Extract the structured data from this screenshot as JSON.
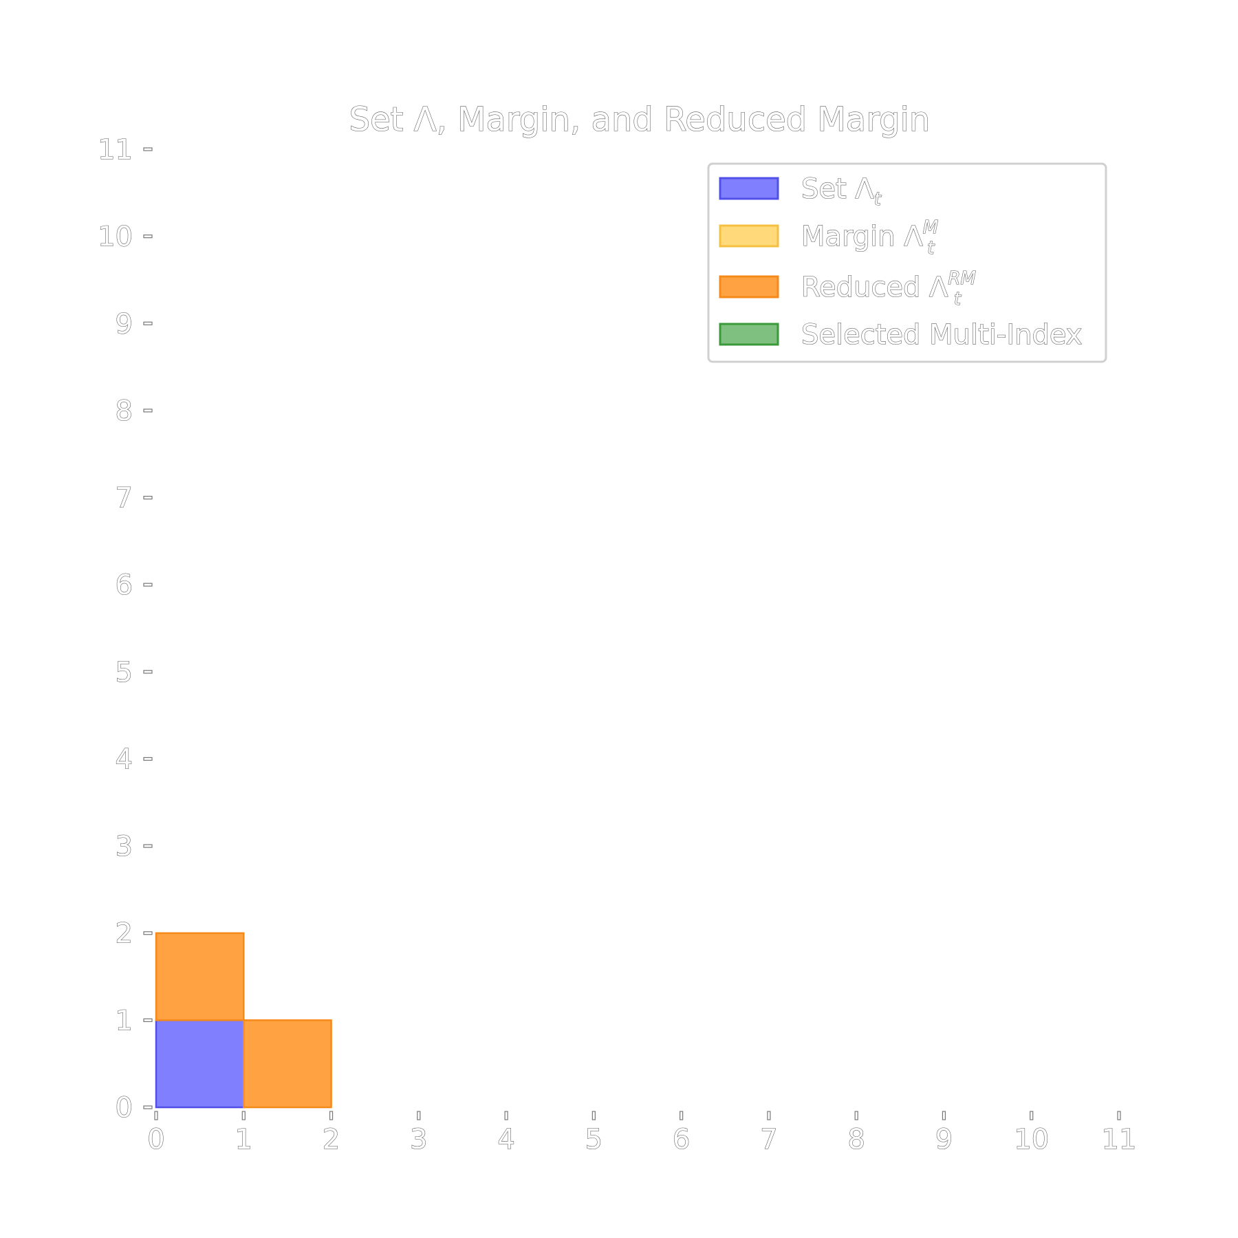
{
  "chart_data": {
    "type": "heatmap",
    "title": "Set Λ, Margin, and Reduced Margin",
    "xlabel": "",
    "ylabel": "",
    "xlim": [
      0,
      11
    ],
    "ylim": [
      0,
      11
    ],
    "x_ticks": [
      0,
      1,
      2,
      3,
      4,
      5,
      6,
      7,
      8,
      9,
      10,
      11
    ],
    "y_ticks": [
      0,
      1,
      2,
      3,
      4,
      5,
      6,
      7,
      8,
      9,
      10,
      11
    ],
    "grid": false,
    "legend_position": "top-right",
    "series": [
      {
        "key": "set",
        "name": "Set Λ",
        "sub": "t",
        "sup": "",
        "fill": "#8080ff",
        "edge": "#5050e8",
        "cells": [
          [
            0,
            0
          ]
        ]
      },
      {
        "key": "margin",
        "name": "Margin Λ",
        "sub": "t",
        "sup": "M",
        "fill": "#ffd97a",
        "edge": "#f5c040",
        "cells": []
      },
      {
        "key": "reduced",
        "name": "Reduced Λ",
        "sub": "t",
        "sup": "RM",
        "fill": "#ffa342",
        "edge": "#f58a1a",
        "cells": [
          [
            1,
            0
          ],
          [
            0,
            1
          ]
        ]
      },
      {
        "key": "selected",
        "name": "Selected Multi-Index",
        "sub": "",
        "sup": "",
        "fill": "#7fbf7f",
        "edge": "#3a9a3a",
        "cells": []
      }
    ]
  }
}
